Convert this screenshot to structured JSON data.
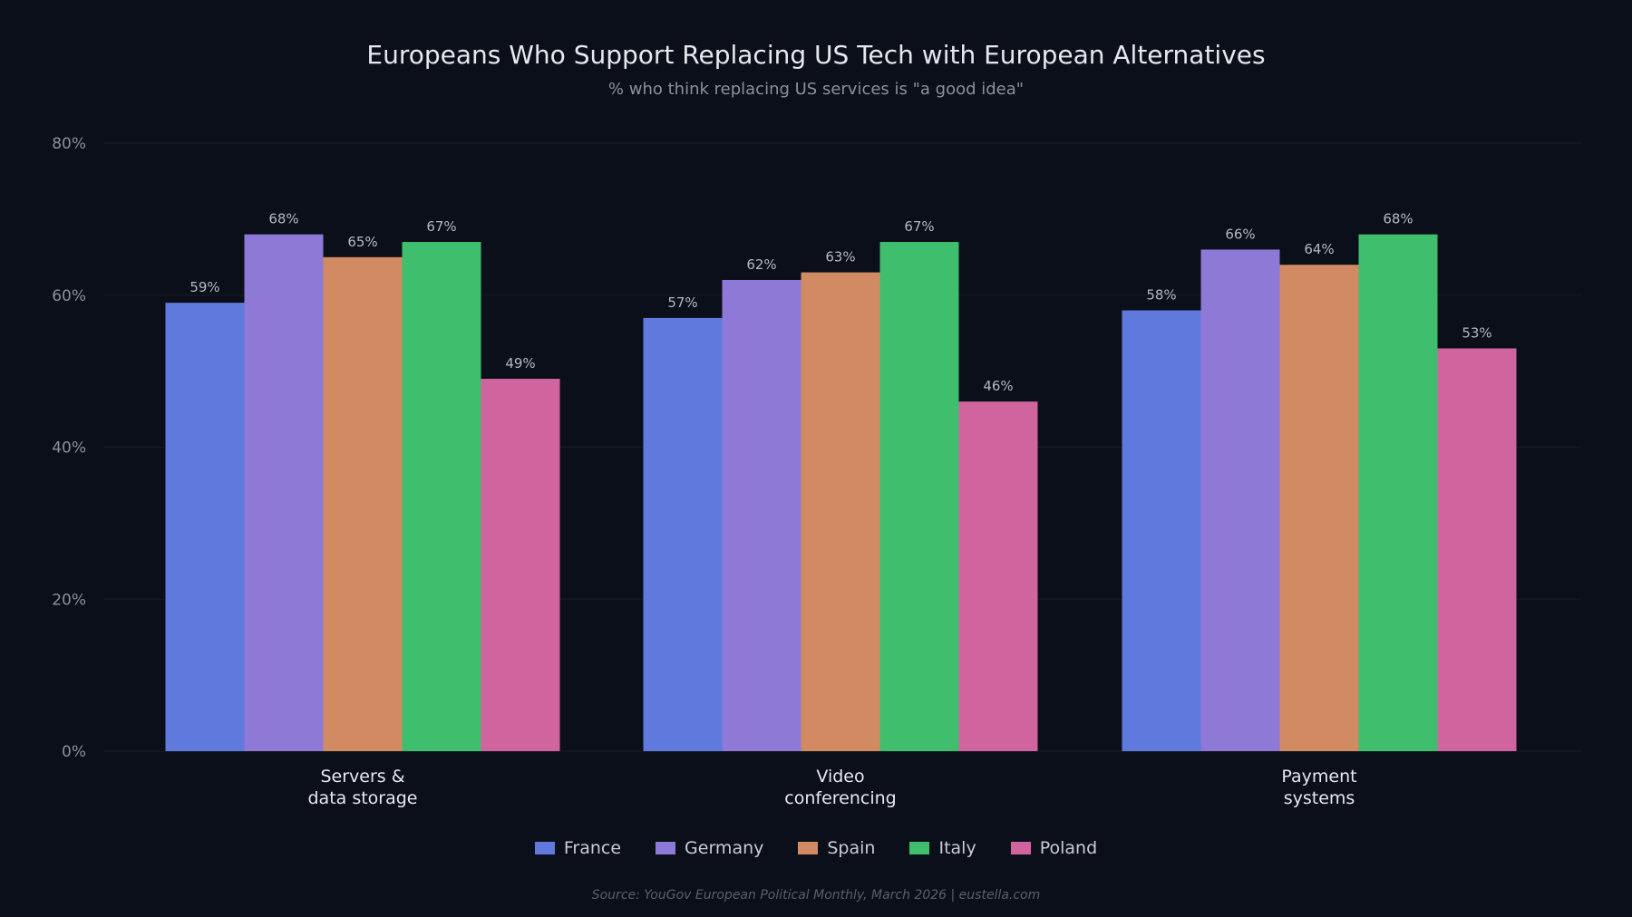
{
  "chart_data": {
    "type": "bar",
    "title": "Europeans Who Support Replacing US Tech with European Alternatives",
    "subtitle": "% who think replacing US services is \"a good idea\"",
    "categories": [
      "Servers &\ndata storage",
      "Video\nconferencing",
      "Payment\nsystems"
    ],
    "series": [
      {
        "name": "France",
        "color": "#5f79dd",
        "values": [
          59,
          57,
          58
        ]
      },
      {
        "name": "Germany",
        "color": "#8e79d6",
        "values": [
          68,
          62,
          66
        ]
      },
      {
        "name": "Spain",
        "color": "#d18a62",
        "values": [
          65,
          63,
          64
        ]
      },
      {
        "name": "Italy",
        "color": "#3fbf6e",
        "values": [
          67,
          67,
          68
        ]
      },
      {
        "name": "Poland",
        "color": "#d0649e",
        "values": [
          49,
          46,
          53
        ]
      }
    ],
    "yticks": [
      "0%",
      "20%",
      "40%",
      "60%",
      "80%"
    ],
    "ylim": [
      0,
      80
    ],
    "grid": true,
    "legend": "bottom",
    "source": "Source: YouGov European Political Monthly, March 2026  |  eustella.com"
  }
}
